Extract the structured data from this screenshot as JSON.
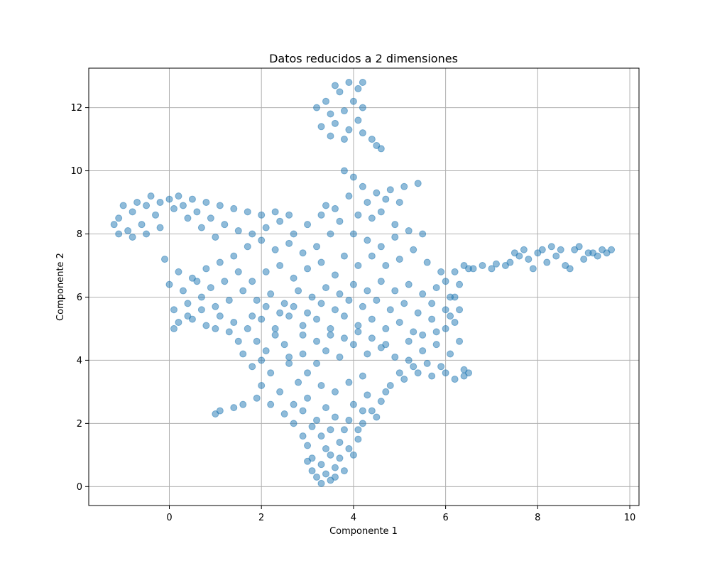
{
  "chart_data": {
    "type": "scatter",
    "title": "Datos reducidos a 2 dimensiones",
    "xlabel": "Componente 1",
    "ylabel": "Componente 2",
    "xlim": [
      -1.75,
      10.2
    ],
    "ylim": [
      -0.6,
      13.25
    ],
    "xticks": [
      0,
      2,
      4,
      6,
      8,
      10
    ],
    "yticks": [
      0,
      2,
      4,
      6,
      8,
      10,
      12
    ],
    "grid": true,
    "marker_color": "#1f77b4",
    "marker_alpha": 0.5,
    "series": [
      {
        "points": [
          [
            3.2,
            0.3
          ],
          [
            3.4,
            0.4
          ],
          [
            3.3,
            0.7
          ],
          [
            3.1,
            0.9
          ],
          [
            3.5,
            1.0
          ],
          [
            3.6,
            0.6
          ],
          [
            3.0,
            1.3
          ],
          [
            3.3,
            1.6
          ],
          [
            3.7,
            1.4
          ],
          [
            3.9,
            1.2
          ],
          [
            3.8,
            1.8
          ],
          [
            4.1,
            1.5
          ],
          [
            4.2,
            2.0
          ],
          [
            3.6,
            2.2
          ],
          [
            3.4,
            2.5
          ],
          [
            4.0,
            2.6
          ],
          [
            4.3,
            2.9
          ],
          [
            4.6,
            2.7
          ],
          [
            4.8,
            3.2
          ],
          [
            5.1,
            3.4
          ],
          [
            5.4,
            3.6
          ],
          [
            5.7,
            3.5
          ],
          [
            6.0,
            3.6
          ],
          [
            6.2,
            3.4
          ],
          [
            6.4,
            3.5
          ],
          [
            6.5,
            3.6
          ],
          [
            3.1,
            0.5
          ],
          [
            3.5,
            0.2
          ],
          [
            2.9,
            1.6
          ],
          [
            2.7,
            2.0
          ],
          [
            2.5,
            2.3
          ],
          [
            2.2,
            2.6
          ],
          [
            1.9,
            2.8
          ],
          [
            1.6,
            2.6
          ],
          [
            1.4,
            2.5
          ],
          [
            1.1,
            2.4
          ],
          [
            1.0,
            2.3
          ],
          [
            2.0,
            3.2
          ],
          [
            2.2,
            3.6
          ],
          [
            2.4,
            3.0
          ],
          [
            2.8,
            3.3
          ],
          [
            3.0,
            3.6
          ],
          [
            2.6,
            3.9
          ],
          [
            1.8,
            3.8
          ],
          [
            1.6,
            4.2
          ],
          [
            1.9,
            4.6
          ],
          [
            2.1,
            4.3
          ],
          [
            2.5,
            4.5
          ],
          [
            2.9,
            4.2
          ],
          [
            3.2,
            3.9
          ],
          [
            3.4,
            4.3
          ],
          [
            3.7,
            4.1
          ],
          [
            4.0,
            4.5
          ],
          [
            4.3,
            4.2
          ],
          [
            4.6,
            4.4
          ],
          [
            4.9,
            4.1
          ],
          [
            5.2,
            4.0
          ],
          [
            5.5,
            4.3
          ],
          [
            5.8,
            4.5
          ],
          [
            6.1,
            4.2
          ],
          [
            6.3,
            4.6
          ],
          [
            6.0,
            5.0
          ],
          [
            5.7,
            5.3
          ],
          [
            5.3,
            4.9
          ],
          [
            5.0,
            5.2
          ],
          [
            4.7,
            5.0
          ],
          [
            4.4,
            5.3
          ],
          [
            4.1,
            5.1
          ],
          [
            3.8,
            5.4
          ],
          [
            3.5,
            5.0
          ],
          [
            3.2,
            5.3
          ],
          [
            2.9,
            5.1
          ],
          [
            2.6,
            5.4
          ],
          [
            2.3,
            5.0
          ],
          [
            2.0,
            5.3
          ],
          [
            1.7,
            5.0
          ],
          [
            1.4,
            5.2
          ],
          [
            1.1,
            5.4
          ],
          [
            0.8,
            5.1
          ],
          [
            0.5,
            5.3
          ],
          [
            0.2,
            5.2
          ],
          [
            0.1,
            5.6
          ],
          [
            0.4,
            5.8
          ],
          [
            0.7,
            6.0
          ],
          [
            1.0,
            5.7
          ],
          [
            1.3,
            5.9
          ],
          [
            1.6,
            6.2
          ],
          [
            1.9,
            5.9
          ],
          [
            2.2,
            6.1
          ],
          [
            2.5,
            5.8
          ],
          [
            2.8,
            6.2
          ],
          [
            3.1,
            6.0
          ],
          [
            3.4,
            6.3
          ],
          [
            3.7,
            6.1
          ],
          [
            4.0,
            6.4
          ],
          [
            4.3,
            6.2
          ],
          [
            4.6,
            6.5
          ],
          [
            4.9,
            6.2
          ],
          [
            5.2,
            6.4
          ],
          [
            5.5,
            6.1
          ],
          [
            5.8,
            6.3
          ],
          [
            6.1,
            6.0
          ],
          [
            6.3,
            5.6
          ],
          [
            6.2,
            5.2
          ],
          [
            6.0,
            6.5
          ],
          [
            6.2,
            6.8
          ],
          [
            6.5,
            6.9
          ],
          [
            6.8,
            7.0
          ],
          [
            7.1,
            7.05
          ],
          [
            7.4,
            7.1
          ],
          [
            7.6,
            7.3
          ],
          [
            7.8,
            7.2
          ],
          [
            8.0,
            7.4
          ],
          [
            8.2,
            7.1
          ],
          [
            8.4,
            7.3
          ],
          [
            8.6,
            7.0
          ],
          [
            8.8,
            7.5
          ],
          [
            9.0,
            7.2
          ],
          [
            9.2,
            7.4
          ],
          [
            9.4,
            7.5
          ],
          [
            9.6,
            7.5
          ],
          [
            8.7,
            6.9
          ],
          [
            8.1,
            7.5
          ],
          [
            7.9,
            6.9
          ],
          [
            8.9,
            7.6
          ],
          [
            9.3,
            7.3
          ],
          [
            1.0,
            7.9
          ],
          [
            0.7,
            8.2
          ],
          [
            0.4,
            8.5
          ],
          [
            0.1,
            8.8
          ],
          [
            -0.2,
            9.0
          ],
          [
            -0.5,
            8.9
          ],
          [
            -0.8,
            8.7
          ],
          [
            -1.1,
            8.5
          ],
          [
            -1.2,
            8.3
          ],
          [
            -0.9,
            8.1
          ],
          [
            -0.6,
            8.3
          ],
          [
            -0.3,
            8.6
          ],
          [
            0.0,
            9.1
          ],
          [
            0.3,
            8.9
          ],
          [
            0.6,
            8.7
          ],
          [
            0.9,
            8.5
          ],
          [
            1.2,
            8.3
          ],
          [
            1.5,
            8.1
          ],
          [
            1.8,
            8.0
          ],
          [
            2.1,
            8.2
          ],
          [
            2.4,
            8.4
          ],
          [
            2.7,
            8.0
          ],
          [
            3.0,
            8.3
          ],
          [
            3.3,
            8.6
          ],
          [
            3.6,
            8.8
          ],
          [
            3.9,
            9.2
          ],
          [
            4.2,
            9.5
          ],
          [
            4.5,
            9.3
          ],
          [
            4.8,
            9.4
          ],
          [
            5.1,
            9.5
          ],
          [
            5.4,
            9.6
          ],
          [
            4.0,
            9.8
          ],
          [
            3.8,
            10.0
          ],
          [
            4.3,
            9.0
          ],
          [
            4.6,
            8.7
          ],
          [
            4.9,
            8.3
          ],
          [
            3.5,
            8.0
          ],
          [
            3.2,
            7.6
          ],
          [
            2.9,
            7.4
          ],
          [
            2.6,
            7.7
          ],
          [
            2.3,
            7.5
          ],
          [
            2.0,
            7.8
          ],
          [
            1.7,
            7.6
          ],
          [
            1.4,
            7.3
          ],
          [
            1.1,
            7.1
          ],
          [
            0.8,
            6.9
          ],
          [
            0.5,
            6.6
          ],
          [
            0.2,
            6.8
          ],
          [
            -0.1,
            7.2
          ],
          [
            0.0,
            6.4
          ],
          [
            0.3,
            6.2
          ],
          [
            0.6,
            6.5
          ],
          [
            3.8,
            7.3
          ],
          [
            4.1,
            7.0
          ],
          [
            4.4,
            7.3
          ],
          [
            4.7,
            7.0
          ],
          [
            5.0,
            7.2
          ],
          [
            5.3,
            7.5
          ],
          [
            5.6,
            7.1
          ],
          [
            5.9,
            6.8
          ],
          [
            3.9,
            12.8
          ],
          [
            4.1,
            12.6
          ],
          [
            3.7,
            12.5
          ],
          [
            3.4,
            12.2
          ],
          [
            3.2,
            12.0
          ],
          [
            3.5,
            11.8
          ],
          [
            3.8,
            11.9
          ],
          [
            4.0,
            12.2
          ],
          [
            4.2,
            12.0
          ],
          [
            3.6,
            11.5
          ],
          [
            3.9,
            11.3
          ],
          [
            4.1,
            11.6
          ],
          [
            3.3,
            11.4
          ],
          [
            3.5,
            11.1
          ],
          [
            3.8,
            11.0
          ],
          [
            4.2,
            11.2
          ],
          [
            4.4,
            11.0
          ],
          [
            4.5,
            10.8
          ],
          [
            4.6,
            10.7
          ],
          [
            4.2,
            12.8
          ],
          [
            3.6,
            12.7
          ],
          [
            3.0,
            0.8
          ],
          [
            3.3,
            0.1
          ],
          [
            3.6,
            0.3
          ],
          [
            3.8,
            0.5
          ],
          [
            3.4,
            1.2
          ],
          [
            3.7,
            0.9
          ],
          [
            4.0,
            1.0
          ],
          [
            4.1,
            1.8
          ],
          [
            3.5,
            1.8
          ],
          [
            3.2,
            2.1
          ],
          [
            2.9,
            2.4
          ],
          [
            4.4,
            2.4
          ],
          [
            4.7,
            3.0
          ],
          [
            5.0,
            3.6
          ],
          [
            5.3,
            3.8
          ],
          [
            5.6,
            3.9
          ],
          [
            5.9,
            3.8
          ],
          [
            6.4,
            3.7
          ],
          [
            5.2,
            4.6
          ],
          [
            5.5,
            4.8
          ],
          [
            5.8,
            4.9
          ],
          [
            6.1,
            5.4
          ],
          [
            6.3,
            6.4
          ],
          [
            1.8,
            6.5
          ],
          [
            2.1,
            6.8
          ],
          [
            2.4,
            7.0
          ],
          [
            2.7,
            6.6
          ],
          [
            3.0,
            6.9
          ],
          [
            3.3,
            7.1
          ],
          [
            3.6,
            6.7
          ],
          [
            1.5,
            6.8
          ],
          [
            1.2,
            6.5
          ],
          [
            0.9,
            6.3
          ],
          [
            1.5,
            4.6
          ],
          [
            1.3,
            4.9
          ],
          [
            1.0,
            5.0
          ],
          [
            0.7,
            5.6
          ],
          [
            0.4,
            5.4
          ],
          [
            0.1,
            5.0
          ],
          [
            2.3,
            8.7
          ],
          [
            2.6,
            8.6
          ],
          [
            2.0,
            8.6
          ],
          [
            1.7,
            8.7
          ],
          [
            1.4,
            8.8
          ],
          [
            1.1,
            8.9
          ],
          [
            0.8,
            9.0
          ],
          [
            0.5,
            9.1
          ],
          [
            0.2,
            9.2
          ],
          [
            -0.4,
            9.2
          ],
          [
            -0.7,
            9.0
          ],
          [
            -1.0,
            8.9
          ],
          [
            -1.1,
            8.0
          ],
          [
            -0.8,
            7.9
          ],
          [
            -0.5,
            8.0
          ],
          [
            -0.2,
            8.2
          ],
          [
            4.7,
            9.1
          ],
          [
            5.0,
            9.0
          ],
          [
            4.4,
            8.5
          ],
          [
            4.1,
            8.6
          ],
          [
            3.7,
            8.4
          ],
          [
            3.4,
            8.9
          ],
          [
            4.0,
            8.0
          ],
          [
            4.3,
            7.8
          ],
          [
            4.6,
            7.6
          ],
          [
            4.9,
            7.9
          ],
          [
            5.2,
            8.1
          ],
          [
            5.5,
            8.0
          ],
          [
            6.2,
            6.0
          ],
          [
            6.0,
            5.6
          ],
          [
            5.7,
            5.8
          ],
          [
            5.4,
            5.5
          ],
          [
            5.1,
            5.8
          ],
          [
            4.8,
            5.6
          ],
          [
            4.5,
            5.9
          ],
          [
            4.2,
            5.7
          ],
          [
            3.9,
            5.9
          ],
          [
            3.6,
            5.6
          ],
          [
            3.3,
            5.8
          ],
          [
            3.0,
            5.5
          ],
          [
            2.7,
            5.7
          ],
          [
            2.4,
            5.5
          ],
          [
            2.1,
            5.7
          ],
          [
            1.8,
            5.4
          ],
          [
            2.0,
            4.0
          ],
          [
            2.3,
            4.8
          ],
          [
            2.6,
            4.1
          ],
          [
            2.9,
            4.8
          ],
          [
            3.2,
            4.6
          ],
          [
            3.5,
            4.8
          ],
          [
            3.8,
            4.7
          ],
          [
            4.1,
            4.9
          ],
          [
            4.4,
            4.7
          ],
          [
            4.7,
            4.5
          ],
          [
            3.3,
            3.2
          ],
          [
            3.6,
            3.0
          ],
          [
            3.9,
            3.3
          ],
          [
            4.2,
            3.5
          ],
          [
            3.0,
            2.8
          ],
          [
            2.7,
            2.6
          ],
          [
            3.9,
            2.1
          ],
          [
            4.2,
            2.4
          ],
          [
            4.5,
            2.2
          ],
          [
            3.1,
            1.9
          ],
          [
            6.4,
            7.0
          ],
          [
            6.6,
            6.9
          ],
          [
            7.0,
            6.9
          ],
          [
            7.3,
            7.0
          ],
          [
            7.5,
            7.4
          ],
          [
            7.7,
            7.5
          ],
          [
            8.3,
            7.6
          ],
          [
            8.5,
            7.5
          ],
          [
            9.1,
            7.4
          ],
          [
            9.5,
            7.4
          ]
        ]
      }
    ]
  }
}
